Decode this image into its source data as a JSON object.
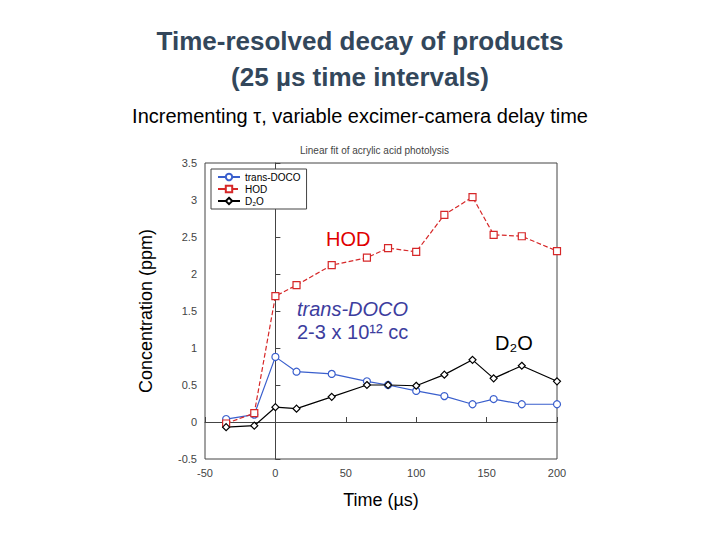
{
  "chart_data": {
    "type": "line",
    "title": [
      "Time-resolved decay of products",
      "(25 µs time intervals)"
    ],
    "subtitle": "Incrementing τ, variable excimer-camera delay time",
    "plot_title": "Linear fit of acrylic acid photolysis",
    "x_label": "Time (µs)",
    "y_label": "Concentration (ppm)",
    "x": [
      -35,
      -15,
      0,
      15,
      40,
      65,
      80,
      100,
      120,
      140,
      155,
      175,
      200
    ],
    "series": [
      {
        "name": "trans-DOCO",
        "color": "#3a5fcd",
        "marker": "circle",
        "line_style": "solid",
        "values": [
          0.04,
          0.1,
          0.88,
          0.68,
          0.65,
          0.55,
          0.5,
          0.42,
          0.35,
          0.24,
          0.31,
          0.24,
          0.24
        ]
      },
      {
        "name": "HOD",
        "color": "#d62728",
        "marker": "square",
        "line_style": "dashed",
        "values": [
          -0.02,
          0.12,
          1.7,
          1.85,
          2.12,
          2.22,
          2.35,
          2.3,
          2.8,
          3.04,
          2.53,
          2.51,
          2.31
        ]
      },
      {
        "name": "D₂O",
        "color": "#000000",
        "marker": "diamond",
        "line_style": "solid",
        "values": [
          -0.07,
          -0.05,
          0.2,
          0.18,
          0.34,
          0.5,
          0.5,
          0.49,
          0.64,
          0.84,
          0.59,
          0.76,
          0.55
        ]
      }
    ],
    "xlim": [
      -50,
      200
    ],
    "xticks": [
      -50,
      0,
      50,
      100,
      150,
      200
    ],
    "ylim": [
      -0.5,
      3.5
    ],
    "yticks": [
      -0.5,
      0,
      0.5,
      1,
      1.5,
      2,
      2.5,
      3,
      3.5
    ],
    "grid": false,
    "legend": "upper left",
    "annotations": [
      {
        "text": "HOD",
        "color": "#e00000"
      },
      {
        "text": "trans-DOCO",
        "color": "#3d3d9e"
      },
      {
        "text": "2-3 x 10¹² cc",
        "color": "#3d3d9e"
      },
      {
        "text": "D₂O",
        "color": "#000000"
      }
    ]
  }
}
